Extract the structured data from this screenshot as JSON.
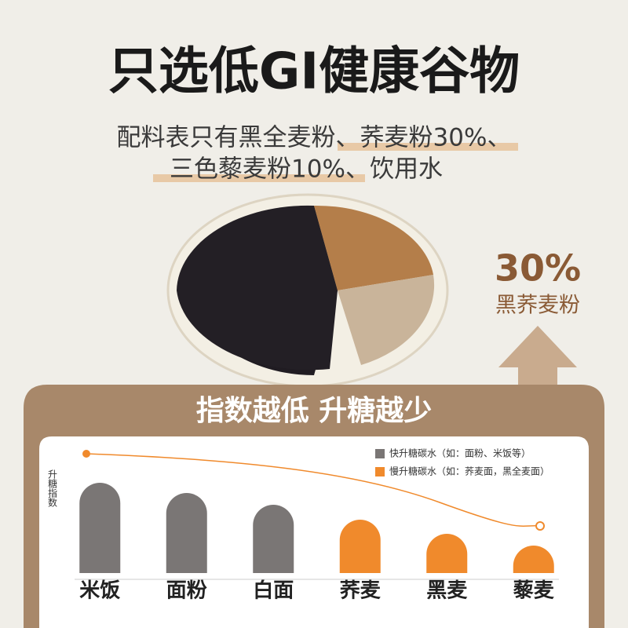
{
  "chart_data": {
    "type": "bar",
    "title": "只选低GI健康谷物",
    "subtitle": [
      "配料表只有黑全麦粉、荞麦粉30%、",
      "三色藜麦粉10%、饮用水"
    ],
    "badge": {
      "big": "30%",
      "small": "黑荞麦粉"
    },
    "banner": "指数越低 升糖越少",
    "ylabel": "升糖指数",
    "categories": [
      "米饭",
      "面粉",
      "白面",
      "荞麦",
      "黑麦",
      "藜麦"
    ],
    "series": [
      {
        "name": "快升糖碳水（如：面粉、米饭等）",
        "color": "#7a7675",
        "values": [
          115,
          102,
          87,
          null,
          null,
          null
        ]
      },
      {
        "name": "慢升糖碳水（如：荞麦面，黑全麦面）",
        "color": "#f08a2c",
        "values": [
          null,
          null,
          null,
          68,
          50,
          35
        ]
      }
    ],
    "ylim": [
      0,
      130
    ]
  }
}
